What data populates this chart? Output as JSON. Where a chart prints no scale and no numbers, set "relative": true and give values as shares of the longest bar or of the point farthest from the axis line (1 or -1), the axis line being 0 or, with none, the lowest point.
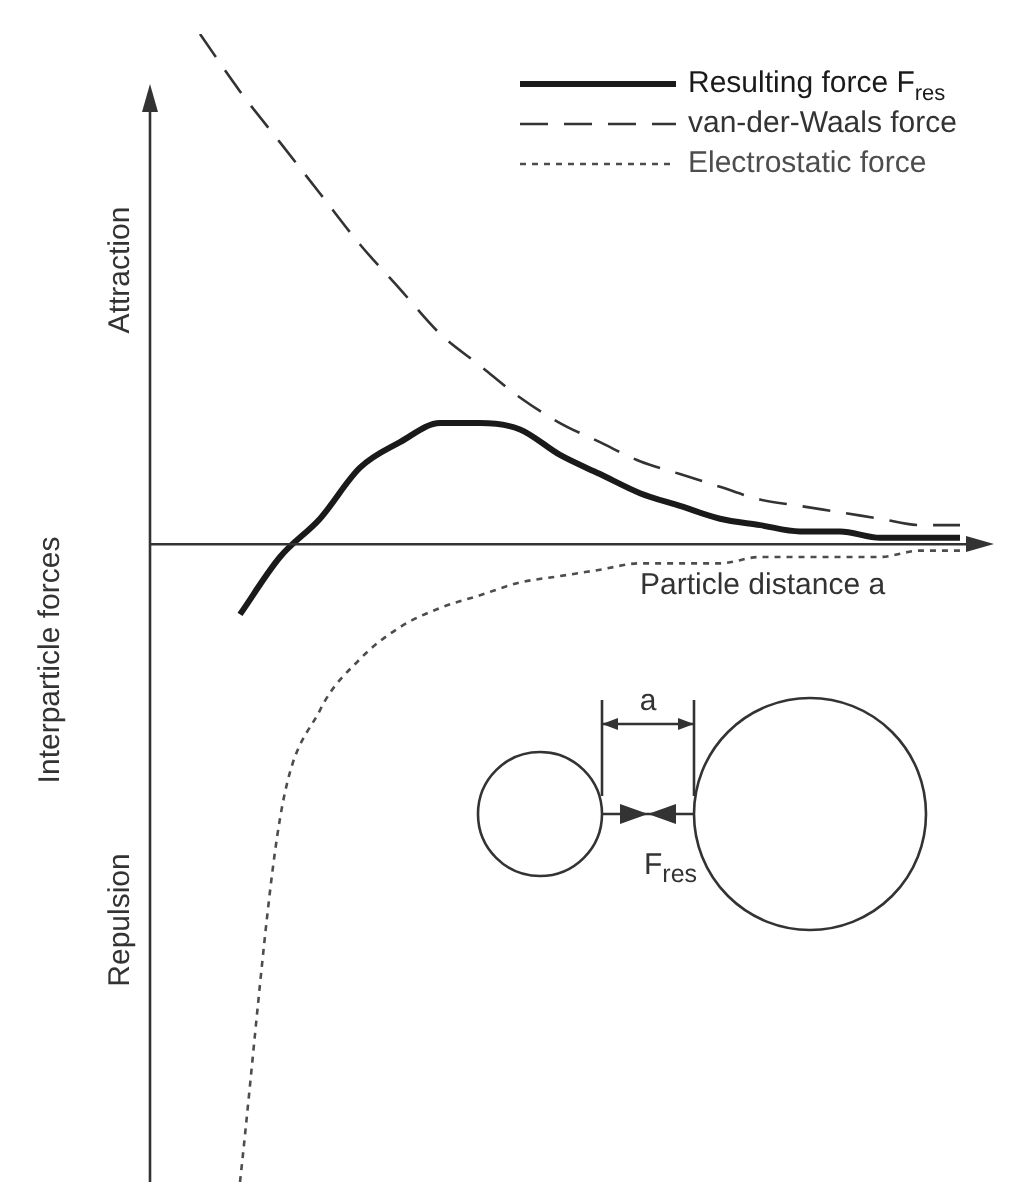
{
  "chart_data": {
    "type": "line",
    "relative": true,
    "legend": "top right",
    "marker": "none",
    "grid": false,
    "tick_labels": false,
    "xlabel": "Particle distance a",
    "ylabel": "Interparticle forces",
    "annotations": [
      "Attraction",
      "Repulsion",
      "a",
      "F$_{res}$"
    ],
    "categories": [
      null,
      null,
      null,
      null,
      null,
      null,
      null,
      null,
      null,
      null,
      null,
      null,
      null,
      null,
      null,
      null,
      null,
      null,
      null,
      null
    ],
    "series": [
      {
        "name": "Resulting force F$_{res}$",
        "color": "#1a1a1a",
        "line_style": "solid",
        "values": [
          null,
          -0.11,
          -0.02,
          0.04,
          0.12,
          0.16,
          0.19,
          0.19,
          0.18,
          0.14,
          0.11,
          0.08,
          0.06,
          0.04,
          0.03,
          0.02,
          0.02,
          0.01,
          0.01,
          0.01
        ]
      },
      {
        "name": "van-der-Waals force",
        "color": "#333333",
        "line_style": "dashed",
        "values": [
          0.8,
          0.71,
          0.63,
          0.55,
          0.47,
          0.4,
          0.33,
          0.28,
          0.23,
          0.19,
          0.16,
          0.13,
          0.11,
          0.09,
          0.07,
          0.06,
          0.05,
          0.04,
          0.03,
          0.03
        ]
      },
      {
        "name": "Electrostatic force",
        "color": "#4d4d4d",
        "line_style": "dotted",
        "values": [
          null,
          -1,
          -0.43,
          -0.26,
          -0.18,
          -0.13,
          -0.1,
          -0.08,
          -0.06,
          -0.05,
          -0.04,
          -0.03,
          -0.03,
          -0.03,
          -0.02,
          -0.02,
          -0.02,
          -0.02,
          -0.01,
          -0.01
        ]
      }
    ]
  }
}
